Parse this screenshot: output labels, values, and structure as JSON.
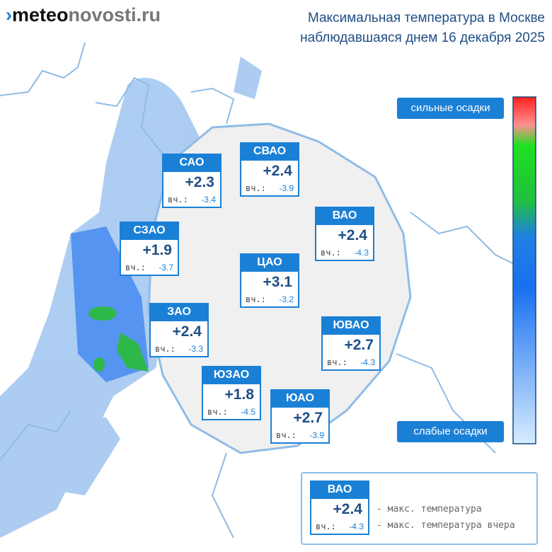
{
  "header": {
    "logo_bold": "meteo",
    "logo_light": "novosti.ru",
    "title_line1": "Максимальная температура в Москве",
    "title_line2": "наблюдавшаяся днем 16 декабря 2025"
  },
  "districts": [
    {
      "name": "САО",
      "temp": "+2.3",
      "prev_label": "вч.:",
      "prev": "-3.4"
    },
    {
      "name": "СВАО",
      "temp": "+2.4",
      "prev_label": "вч.:",
      "prev": "-3.9"
    },
    {
      "name": "ВАО",
      "temp": "+2.4",
      "prev_label": "вч.:",
      "prev": "-4.3"
    },
    {
      "name": "СЗАО",
      "temp": "+1.9",
      "prev_label": "вч.:",
      "prev": "-3.7"
    },
    {
      "name": "ЦАО",
      "temp": "+3.1",
      "prev_label": "вч.:",
      "prev": "-3.2"
    },
    {
      "name": "ЗАО",
      "temp": "+2.4",
      "prev_label": "вч.:",
      "prev": "-3.3"
    },
    {
      "name": "ЮВАО",
      "temp": "+2.7",
      "prev_label": "вч.:",
      "prev": "-4.3"
    },
    {
      "name": "ЮЗАО",
      "temp": "+1.8",
      "prev_label": "вч.:",
      "prev": "-4.5"
    },
    {
      "name": "ЮАО",
      "temp": "+2.7",
      "prev_label": "вч.:",
      "prev": "-3.9"
    }
  ],
  "precip_scale": {
    "high": "сильные осадки",
    "low": "слабые осадки"
  },
  "legend": {
    "sample": {
      "name": "ВАО",
      "temp": "+2.4",
      "prev_label": "вч.:",
      "prev": "-4.3"
    },
    "temp_note": "- макс. температура",
    "prev_note": "- макс. температура вчера"
  }
}
